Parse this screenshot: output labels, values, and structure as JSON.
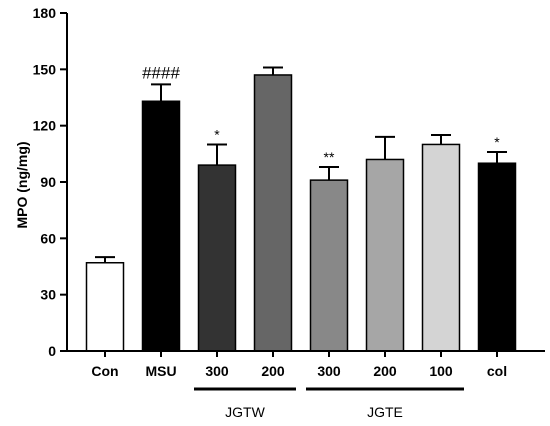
{
  "chart_data": {
    "type": "bar",
    "ylabel": "MPO  (ng/mg)",
    "ylim": [
      0,
      180
    ],
    "yticks": [
      0,
      30,
      60,
      90,
      120,
      150,
      180
    ],
    "categories": [
      "Con",
      "MSU",
      "300",
      "200",
      "300",
      "200",
      "100",
      "col"
    ],
    "values": [
      47,
      133,
      99,
      147,
      91,
      102,
      110,
      100
    ],
    "errors": [
      3,
      9,
      11,
      4,
      7,
      12,
      5,
      6
    ],
    "colors": [
      "#ffffff",
      "#000000",
      "#333333",
      "#666666",
      "#888888",
      "#a6a6a6",
      "#d4d4d4",
      "#000000"
    ],
    "annotations": [
      "",
      "####",
      "*",
      "",
      "**",
      "",
      "",
      "*"
    ],
    "groups": [
      {
        "label": "JGTW",
        "start": 2,
        "end": 3
      },
      {
        "label": "JGTE",
        "start": 4,
        "end": 6
      }
    ]
  }
}
